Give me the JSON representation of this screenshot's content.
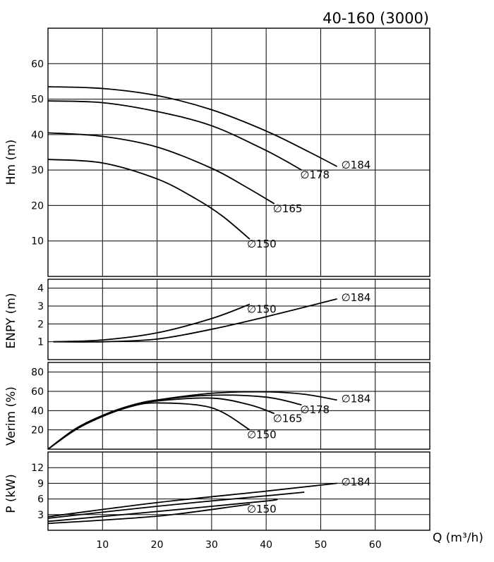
{
  "title": "40-160 (3000)",
  "x_axis_label": "Q (m³/h)",
  "x_ticks": [
    "10",
    "20",
    "30",
    "40",
    "50",
    "60"
  ],
  "chart_data": [
    {
      "type": "line",
      "ylabel": "Hm (m)",
      "xlim": [
        0,
        70
      ],
      "ylim": [
        0,
        70
      ],
      "yticks": [
        10,
        20,
        30,
        40,
        50,
        60
      ],
      "grid": true,
      "series": [
        {
          "name": "∅184",
          "x": [
            0,
            10,
            20,
            30,
            40,
            48,
            53
          ],
          "y": [
            53.5,
            53,
            51,
            47,
            41,
            35,
            31
          ]
        },
        {
          "name": "∅178",
          "x": [
            0,
            10,
            20,
            30,
            40,
            46.5
          ],
          "y": [
            49.5,
            49,
            46.5,
            42.5,
            35.5,
            30
          ]
        },
        {
          "name": "∅165",
          "x": [
            0,
            10,
            20,
            30,
            36,
            41.5
          ],
          "y": [
            40.5,
            39.5,
            36.5,
            30.5,
            25.5,
            20.5
          ]
        },
        {
          "name": "∅150",
          "x": [
            0,
            10,
            20,
            27,
            32,
            37
          ],
          "y": [
            33,
            32,
            27.5,
            22,
            17,
            10.5
          ]
        }
      ]
    },
    {
      "type": "line",
      "ylabel": "ENPY (m)",
      "xlim": [
        0,
        70
      ],
      "ylim": [
        0,
        4.5
      ],
      "yticks": [
        1,
        2,
        3,
        4
      ],
      "grid": true,
      "series": [
        {
          "name": "∅150",
          "x": [
            1,
            10,
            20,
            30,
            37
          ],
          "y": [
            1,
            1.1,
            1.5,
            2.3,
            3.1
          ]
        },
        {
          "name": "∅184",
          "x": [
            1,
            10,
            20,
            30,
            40,
            53
          ],
          "y": [
            1,
            1,
            1.15,
            1.7,
            2.4,
            3.4
          ]
        }
      ]
    },
    {
      "type": "line",
      "ylabel": "Verim (%)",
      "xlim": [
        0,
        70
      ],
      "ylim": [
        0,
        90
      ],
      "yticks": [
        20,
        40,
        60,
        80
      ],
      "grid": true,
      "series": [
        {
          "name": "∅184",
          "x": [
            0,
            5,
            10,
            15,
            20,
            30,
            40,
            47,
            53
          ],
          "y": [
            0,
            21,
            35,
            45,
            51,
            58,
            59.5,
            57,
            51
          ]
        },
        {
          "name": "∅178",
          "x": [
            0,
            5,
            10,
            15,
            20,
            30,
            40,
            46.5
          ],
          "y": [
            0,
            21,
            35,
            45,
            51,
            56,
            54,
            46
          ]
        },
        {
          "name": "∅165",
          "x": [
            0,
            5,
            10,
            15,
            20,
            30,
            37,
            41.5
          ],
          "y": [
            0,
            20,
            34,
            44,
            50,
            53,
            46,
            37
          ]
        },
        {
          "name": "∅150",
          "x": [
            0,
            5,
            10,
            15,
            20,
            30,
            37
          ],
          "y": [
            0,
            20,
            34,
            44,
            48,
            43,
            20
          ]
        }
      ]
    },
    {
      "type": "line",
      "ylabel": "P (kW)",
      "xlim": [
        0,
        70
      ],
      "ylim": [
        0,
        15
      ],
      "yticks": [
        3,
        6,
        9,
        12
      ],
      "grid": true,
      "series": [
        {
          "name": "∅184",
          "x": [
            0,
            20,
            40,
            53
          ],
          "y": [
            2.6,
            5.3,
            7.5,
            9
          ]
        },
        {
          "name": "",
          "x": [
            0,
            20,
            40,
            47
          ],
          "y": [
            2.3,
            4.6,
            6.6,
            7.3
          ]
        },
        {
          "name": "",
          "x": [
            0,
            20,
            40,
            41.5
          ],
          "y": [
            1.7,
            3.6,
            5.6,
            6
          ]
        },
        {
          "name": "∅150",
          "x": [
            0,
            20,
            35,
            37
          ],
          "y": [
            1.3,
            2.7,
            4.7,
            5
          ]
        }
      ]
    }
  ]
}
